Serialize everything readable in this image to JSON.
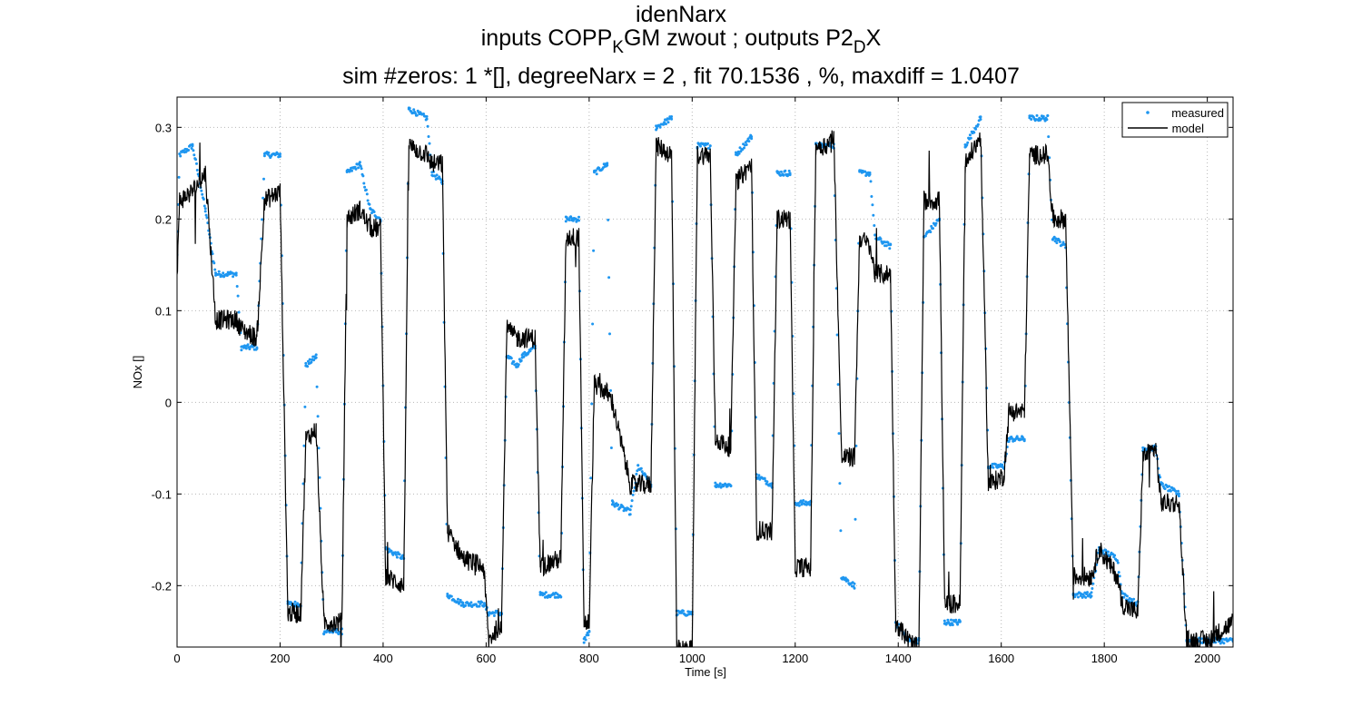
{
  "chart_data": {
    "type": "line",
    "title": "idenNarx",
    "subtitle": {
      "part1": "inputs COPP",
      "sub1": "K",
      "part2": "GM zwout ; outputs P2",
      "sub2": "D",
      "part3": "X"
    },
    "subtitle2": "sim #zeros:  1 *[], degreeNarx =  2 , fit  70.1536 , %, maxdiff =  1.0407",
    "xlabel": "Time [s]",
    "ylabel": "NOx  []",
    "xlim": [
      0,
      2050
    ],
    "ylim": [
      -0.267,
      0.333
    ],
    "x_ticks": [
      0,
      200,
      400,
      600,
      800,
      1000,
      1200,
      1400,
      1600,
      1800,
      2000
    ],
    "x_tick_labels": [
      "0",
      "200",
      "400",
      "600",
      "800",
      "1000",
      "1200",
      "1400",
      "1600",
      "1800",
      "2000"
    ],
    "y_ticks": [
      0.3,
      0.2,
      0.1,
      0,
      -0.1,
      -0.2
    ],
    "y_tick_labels": [
      "0.3",
      "0.2",
      "0.1",
      "0",
      "-0.1",
      "-0.2"
    ],
    "grid": true,
    "legend_placement": "top-right",
    "colors": {
      "measured": "#1e96f0",
      "model": "#000000"
    },
    "series": [
      {
        "name": "measured",
        "style": "dots",
        "segments": [
          [
            0,
            0.16
          ],
          [
            5,
            0.27
          ],
          [
            30,
            0.28
          ],
          [
            55,
            0.21
          ],
          [
            75,
            0.14
          ],
          [
            115,
            0.14
          ],
          [
            125,
            0.06
          ],
          [
            155,
            0.06
          ],
          [
            170,
            0.27
          ],
          [
            200,
            0.27
          ],
          [
            215,
            -0.22
          ],
          [
            240,
            -0.22
          ],
          [
            250,
            0.04
          ],
          [
            270,
            0.05
          ],
          [
            285,
            -0.25
          ],
          [
            320,
            -0.25
          ],
          [
            330,
            0.25
          ],
          [
            355,
            0.26
          ],
          [
            375,
            0.21
          ],
          [
            395,
            0.2
          ],
          [
            405,
            -0.16
          ],
          [
            440,
            -0.17
          ],
          [
            450,
            0.32
          ],
          [
            485,
            0.31
          ],
          [
            495,
            0.25
          ],
          [
            515,
            0.24
          ],
          [
            525,
            -0.21
          ],
          [
            555,
            -0.22
          ],
          [
            595,
            -0.22
          ],
          [
            605,
            -0.23
          ],
          [
            630,
            -0.23
          ],
          [
            640,
            0.05
          ],
          [
            660,
            0.04
          ],
          [
            670,
            0.05
          ],
          [
            695,
            0.06
          ],
          [
            705,
            -0.21
          ],
          [
            745,
            -0.21
          ],
          [
            755,
            0.2
          ],
          [
            780,
            0.2
          ],
          [
            790,
            -0.26
          ],
          [
            800,
            -0.25
          ],
          [
            810,
            0.25
          ],
          [
            835,
            0.26
          ],
          [
            845,
            -0.11
          ],
          [
            880,
            -0.12
          ],
          [
            895,
            -0.07
          ],
          [
            920,
            -0.09
          ],
          [
            930,
            0.3
          ],
          [
            960,
            0.31
          ],
          [
            970,
            -0.23
          ],
          [
            1000,
            -0.23
          ],
          [
            1010,
            0.28
          ],
          [
            1035,
            0.28
          ],
          [
            1045,
            -0.09
          ],
          [
            1075,
            -0.09
          ],
          [
            1085,
            0.27
          ],
          [
            1115,
            0.29
          ],
          [
            1125,
            -0.08
          ],
          [
            1155,
            -0.09
          ],
          [
            1165,
            0.25
          ],
          [
            1190,
            0.25
          ],
          [
            1200,
            -0.11
          ],
          [
            1230,
            -0.11
          ],
          [
            1240,
            0.28
          ],
          [
            1260,
            0.28
          ],
          [
            1275,
            0.28
          ],
          [
            1290,
            -0.19
          ],
          [
            1315,
            -0.2
          ],
          [
            1325,
            0.25
          ],
          [
            1345,
            0.25
          ],
          [
            1355,
            0.18
          ],
          [
            1385,
            0.17
          ],
          [
            1395,
            -0.24
          ],
          [
            1420,
            -0.26
          ],
          [
            1440,
            -0.26
          ],
          [
            1450,
            0.18
          ],
          [
            1480,
            0.2
          ],
          [
            1490,
            -0.24
          ],
          [
            1520,
            -0.24
          ],
          [
            1530,
            0.28
          ],
          [
            1560,
            0.31
          ],
          [
            1575,
            -0.07
          ],
          [
            1605,
            -0.07
          ],
          [
            1615,
            -0.04
          ],
          [
            1645,
            -0.04
          ],
          [
            1655,
            0.31
          ],
          [
            1690,
            0.31
          ],
          [
            1700,
            0.18
          ],
          [
            1725,
            0.17
          ],
          [
            1740,
            -0.21
          ],
          [
            1775,
            -0.21
          ],
          [
            1790,
            -0.16
          ],
          [
            1825,
            -0.17
          ],
          [
            1835,
            -0.21
          ],
          [
            1865,
            -0.22
          ],
          [
            1875,
            -0.05
          ],
          [
            1900,
            -0.05
          ],
          [
            1910,
            -0.09
          ],
          [
            1945,
            -0.1
          ],
          [
            1960,
            -0.26
          ],
          [
            2000,
            -0.26
          ],
          [
            2050,
            -0.26
          ]
        ]
      },
      {
        "name": "model",
        "style": "line",
        "segments": [
          [
            0,
            0.14
          ],
          [
            5,
            0.22
          ],
          [
            30,
            0.23
          ],
          [
            55,
            0.25
          ],
          [
            75,
            0.09
          ],
          [
            115,
            0.09
          ],
          [
            125,
            0.08
          ],
          [
            155,
            0.07
          ],
          [
            170,
            0.22
          ],
          [
            200,
            0.23
          ],
          [
            215,
            -0.23
          ],
          [
            240,
            -0.23
          ],
          [
            250,
            -0.04
          ],
          [
            270,
            -0.03
          ],
          [
            285,
            -0.24
          ],
          [
            320,
            -0.24
          ],
          [
            330,
            0.2
          ],
          [
            355,
            0.21
          ],
          [
            375,
            0.19
          ],
          [
            395,
            0.19
          ],
          [
            405,
            -0.19
          ],
          [
            440,
            -0.2
          ],
          [
            450,
            0.28
          ],
          [
            485,
            0.27
          ],
          [
            495,
            0.26
          ],
          [
            515,
            0.26
          ],
          [
            525,
            -0.14
          ],
          [
            555,
            -0.17
          ],
          [
            595,
            -0.18
          ],
          [
            605,
            -0.26
          ],
          [
            630,
            -0.24
          ],
          [
            640,
            0.08
          ],
          [
            660,
            0.07
          ],
          [
            670,
            0.07
          ],
          [
            695,
            0.07
          ],
          [
            705,
            -0.18
          ],
          [
            745,
            -0.17
          ],
          [
            755,
            0.18
          ],
          [
            780,
            0.18
          ],
          [
            790,
            -0.24
          ],
          [
            800,
            -0.24
          ],
          [
            810,
            0.02
          ],
          [
            835,
            0.01
          ],
          [
            845,
            0.0
          ],
          [
            880,
            -0.09
          ],
          [
            895,
            -0.09
          ],
          [
            920,
            -0.09
          ],
          [
            930,
            0.28
          ],
          [
            960,
            0.27
          ],
          [
            970,
            -0.27
          ],
          [
            1000,
            -0.27
          ],
          [
            1010,
            0.27
          ],
          [
            1035,
            0.27
          ],
          [
            1045,
            -0.04
          ],
          [
            1075,
            -0.05
          ],
          [
            1085,
            0.24
          ],
          [
            1115,
            0.26
          ],
          [
            1125,
            -0.14
          ],
          [
            1155,
            -0.14
          ],
          [
            1165,
            0.2
          ],
          [
            1190,
            0.2
          ],
          [
            1200,
            -0.18
          ],
          [
            1230,
            -0.18
          ],
          [
            1240,
            0.28
          ],
          [
            1260,
            0.28
          ],
          [
            1275,
            0.29
          ],
          [
            1290,
            -0.06
          ],
          [
            1315,
            -0.06
          ],
          [
            1325,
            0.18
          ],
          [
            1345,
            0.17
          ],
          [
            1355,
            0.14
          ],
          [
            1385,
            0.14
          ],
          [
            1395,
            -0.24
          ],
          [
            1420,
            -0.26
          ],
          [
            1440,
            -0.27
          ],
          [
            1450,
            0.22
          ],
          [
            1480,
            0.22
          ],
          [
            1490,
            -0.22
          ],
          [
            1520,
            -0.22
          ],
          [
            1530,
            0.26
          ],
          [
            1560,
            0.29
          ],
          [
            1575,
            -0.09
          ],
          [
            1605,
            -0.08
          ],
          [
            1615,
            -0.01
          ],
          [
            1645,
            -0.01
          ],
          [
            1655,
            0.27
          ],
          [
            1690,
            0.27
          ],
          [
            1700,
            0.2
          ],
          [
            1725,
            0.2
          ],
          [
            1740,
            -0.19
          ],
          [
            1775,
            -0.19
          ],
          [
            1790,
            -0.16
          ],
          [
            1825,
            -0.19
          ],
          [
            1835,
            -0.22
          ],
          [
            1865,
            -0.23
          ],
          [
            1875,
            -0.06
          ],
          [
            1900,
            -0.05
          ],
          [
            1910,
            -0.11
          ],
          [
            1945,
            -0.11
          ],
          [
            1960,
            -0.26
          ],
          [
            2000,
            -0.26
          ],
          [
            2050,
            -0.24
          ]
        ]
      }
    ]
  }
}
